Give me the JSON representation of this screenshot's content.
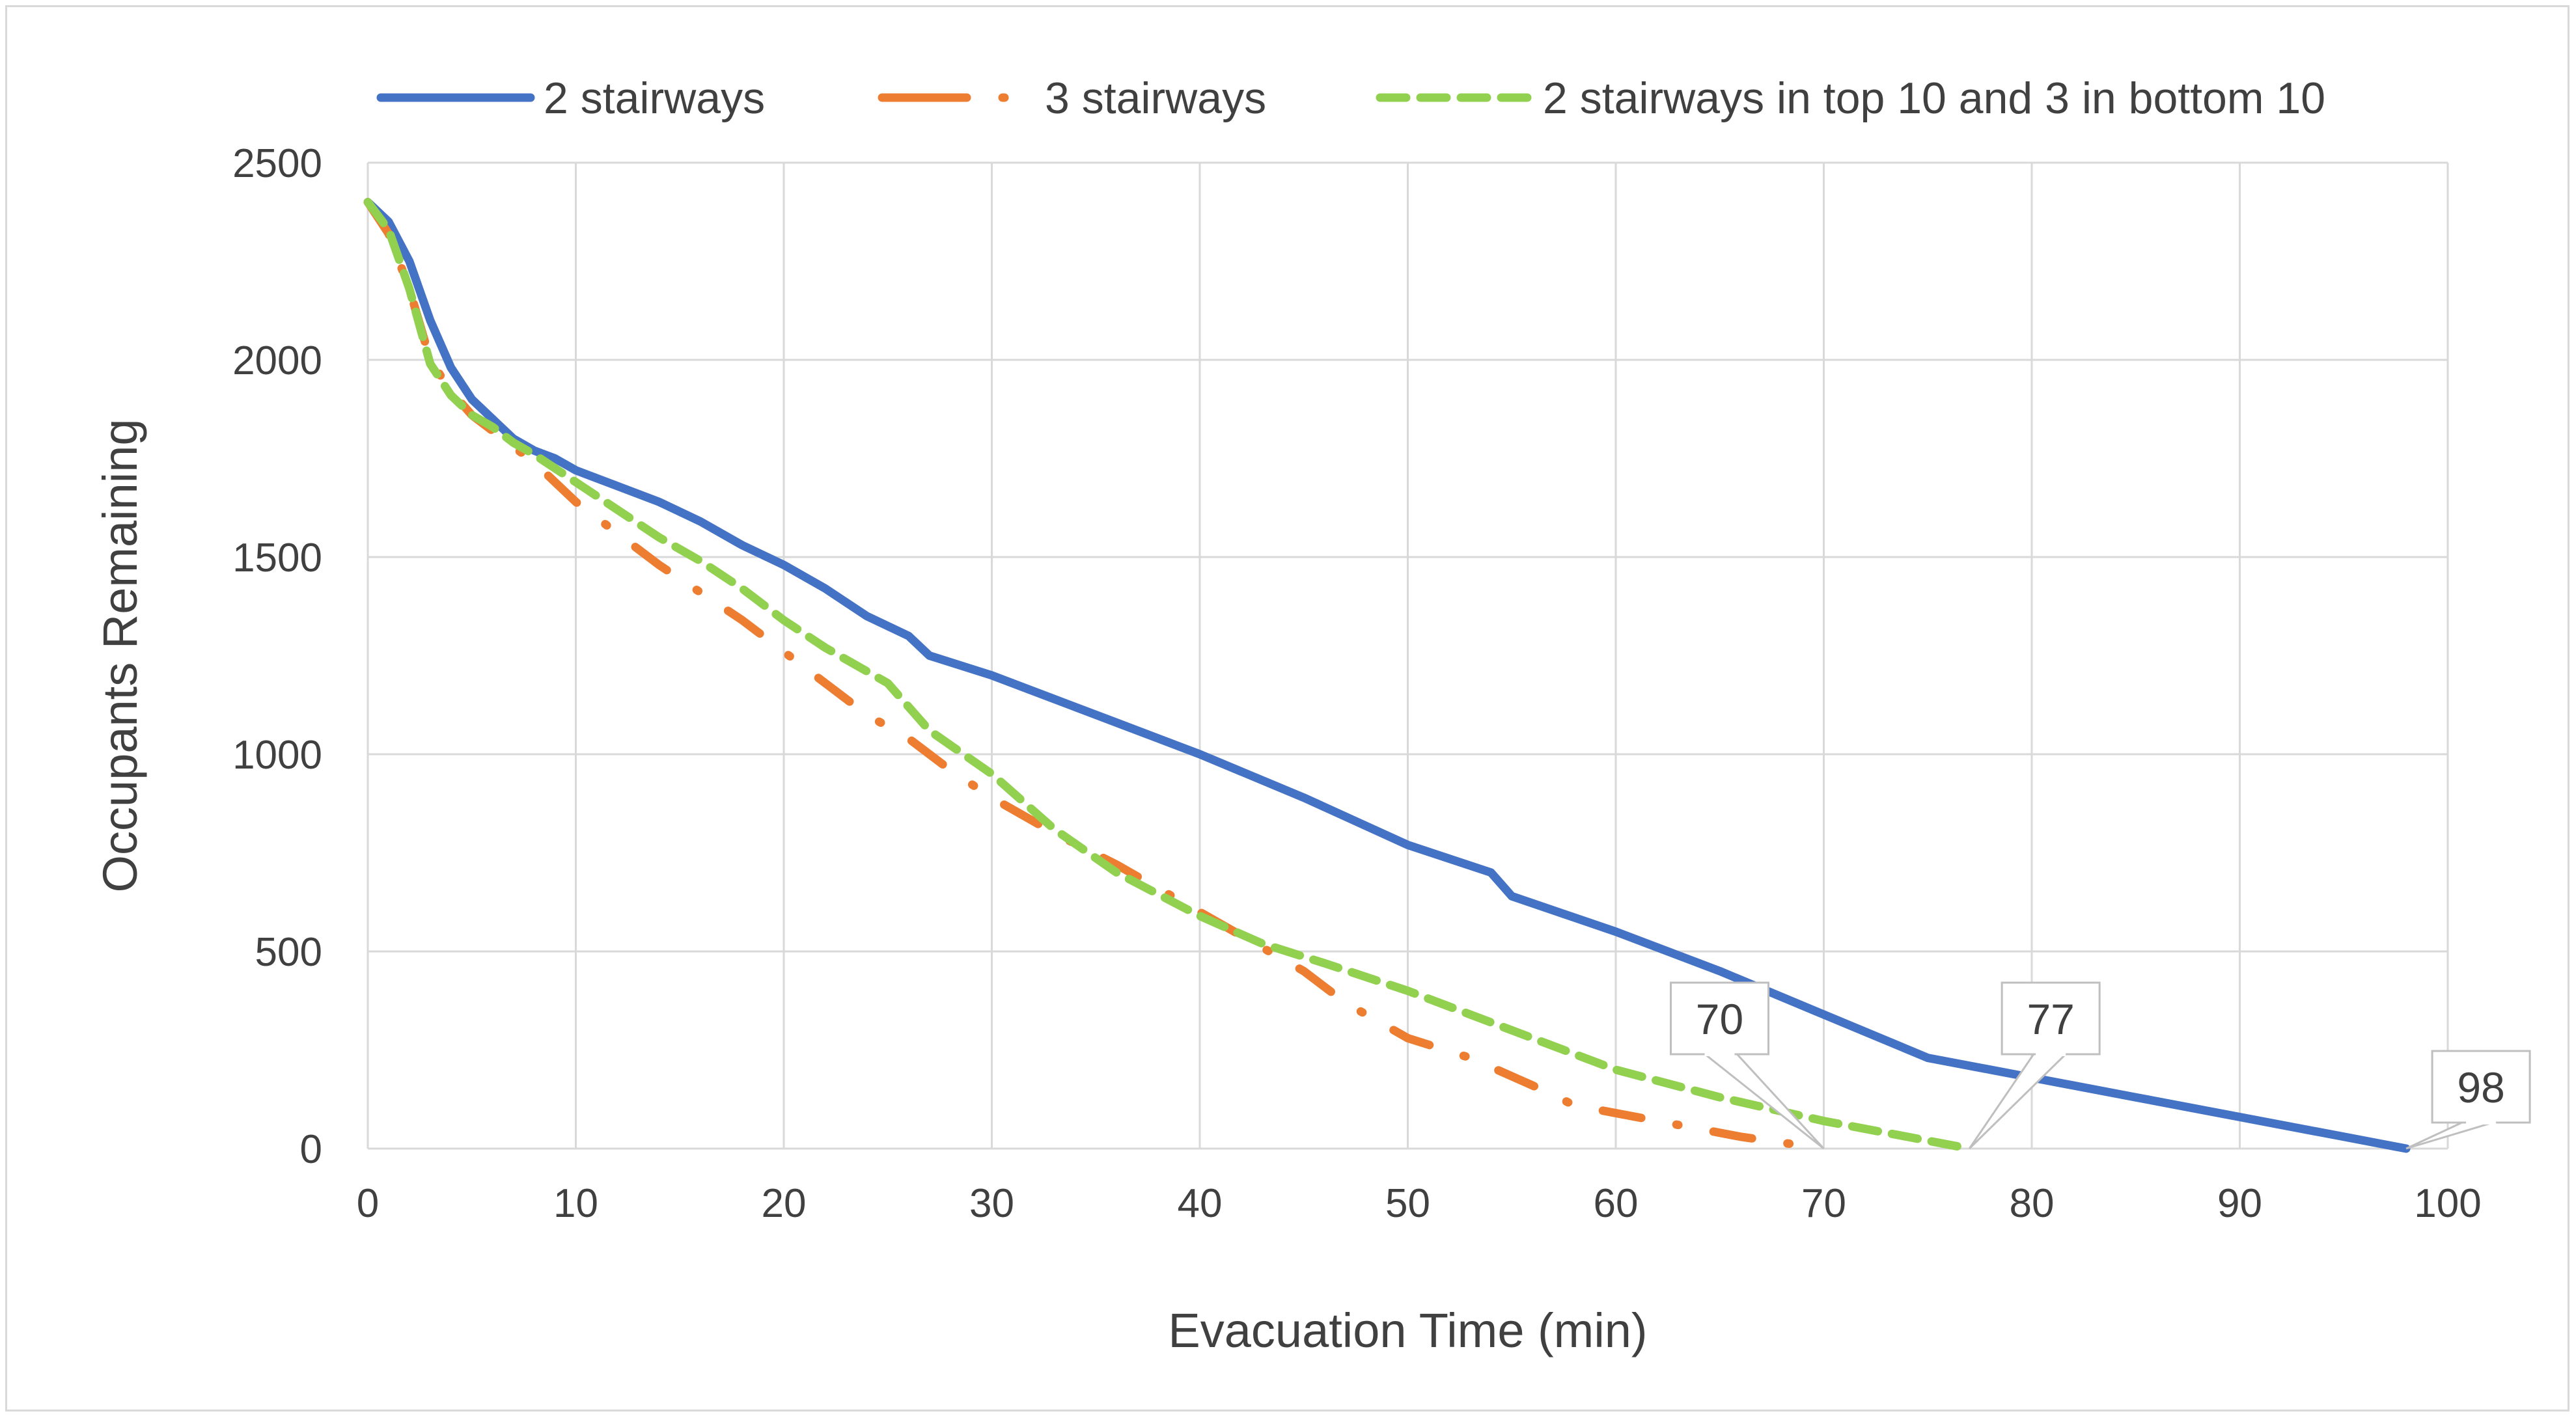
{
  "chart_data": {
    "type": "line",
    "title": "",
    "xlabel": "Evacuation Time (min)",
    "ylabel": "Occupants Remaining",
    "xlim": [
      0,
      100
    ],
    "ylim": [
      0,
      2500
    ],
    "xticks": [
      0,
      10,
      20,
      30,
      40,
      50,
      60,
      70,
      80,
      90,
      100
    ],
    "yticks": [
      0,
      500,
      1000,
      1500,
      2000,
      2500
    ],
    "grid": true,
    "legend_position": "top",
    "series": [
      {
        "name": "2 stairways",
        "color": "#4472c4",
        "style": "solid",
        "x": [
          0,
          1,
          2,
          3,
          4,
          5,
          6,
          7,
          8,
          9,
          10,
          12,
          14,
          16,
          18,
          20,
          22,
          24,
          26,
          27,
          30,
          33,
          36,
          40,
          45,
          50,
          54,
          55,
          60,
          65,
          70,
          75,
          80,
          85,
          90,
          95,
          98
        ],
        "y": [
          2400,
          2350,
          2250,
          2100,
          1980,
          1900,
          1850,
          1800,
          1770,
          1750,
          1720,
          1680,
          1640,
          1590,
          1530,
          1480,
          1420,
          1350,
          1300,
          1250,
          1200,
          1140,
          1080,
          1000,
          890,
          770,
          700,
          640,
          550,
          450,
          340,
          230,
          180,
          130,
          80,
          30,
          0
        ]
      },
      {
        "name": "3 stairways",
        "color": "#ed7d31",
        "style": "dash-dot",
        "x": [
          0,
          1,
          2,
          3,
          4,
          5,
          6,
          7,
          8,
          10,
          12,
          14,
          16,
          18,
          20,
          22,
          24,
          26,
          28,
          30,
          33,
          36,
          40,
          42,
          45,
          47,
          50,
          53,
          56,
          58,
          60,
          63,
          66,
          68,
          70
        ],
        "y": [
          2400,
          2320,
          2180,
          2000,
          1920,
          1860,
          1820,
          1780,
          1740,
          1640,
          1560,
          1480,
          1410,
          1340,
          1260,
          1180,
          1100,
          1040,
          960,
          890,
          800,
          720,
          600,
          540,
          450,
          370,
          280,
          230,
          160,
          110,
          90,
          60,
          30,
          15,
          0
        ]
      },
      {
        "name": "2 stairways in top 10 and 3 in bottom 10",
        "color": "#92d050",
        "style": "dashed",
        "x": [
          0,
          1,
          2,
          3,
          4,
          5,
          6,
          7,
          8,
          10,
          12,
          14,
          16,
          18,
          20,
          22,
          25,
          27,
          30,
          33,
          36,
          40,
          43,
          46,
          50,
          55,
          60,
          65,
          70,
          74,
          77
        ],
        "y": [
          2400,
          2330,
          2180,
          1990,
          1910,
          1860,
          1830,
          1790,
          1760,
          1690,
          1620,
          1550,
          1490,
          1420,
          1340,
          1270,
          1180,
          1060,
          950,
          810,
          700,
          590,
          520,
          470,
          400,
          300,
          200,
          130,
          70,
          30,
          0
        ]
      }
    ],
    "annotations": [
      {
        "text": "70",
        "x": 70,
        "y": 0
      },
      {
        "text": "77",
        "x": 77,
        "y": 0
      },
      {
        "text": "98",
        "x": 98,
        "y": 0
      }
    ]
  }
}
